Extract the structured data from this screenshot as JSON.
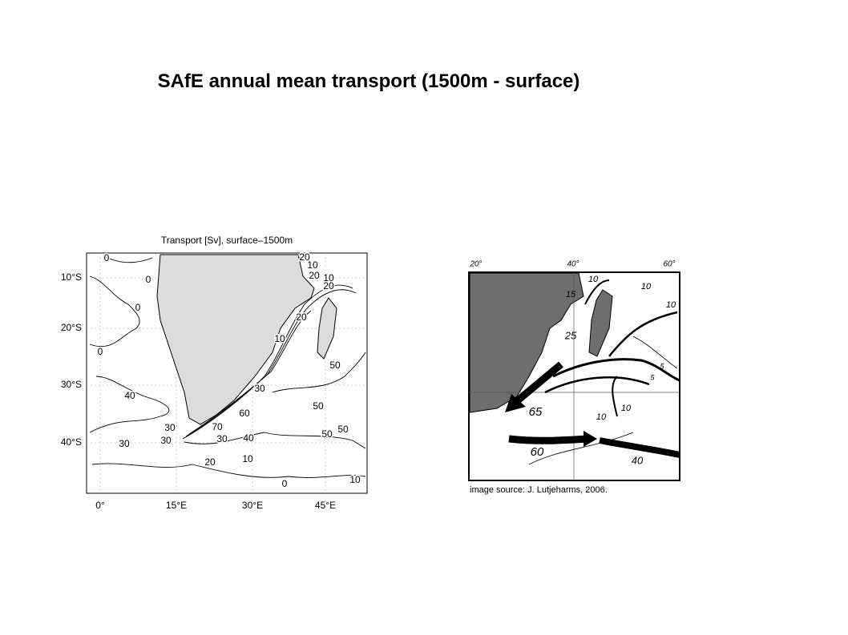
{
  "title": "SAfE annual mean transport (1500m - surface)",
  "left_map": {
    "title": "Transport [Sv], surface–1500m",
    "y_labels": [
      "10°S",
      "20°S",
      "30°S",
      "40°S"
    ],
    "x_labels": [
      "0°",
      "15°E",
      "30°E",
      "45°E"
    ],
    "contour_labels": [
      0,
      0,
      0,
      0,
      40,
      30,
      30,
      30,
      20,
      10,
      30,
      40,
      70,
      60,
      50,
      50,
      50,
      50,
      30,
      10,
      20,
      20,
      10,
      20,
      10,
      20,
      0,
      10
    ]
  },
  "right_map": {
    "top_labels": [
      "20°",
      "40°",
      "60°"
    ],
    "flow_labels": [
      10,
      15,
      10,
      10,
      25,
      5,
      5,
      65,
      10,
      10,
      60,
      40
    ],
    "caption": "image source: J. Lutjeharms, 2006."
  }
}
